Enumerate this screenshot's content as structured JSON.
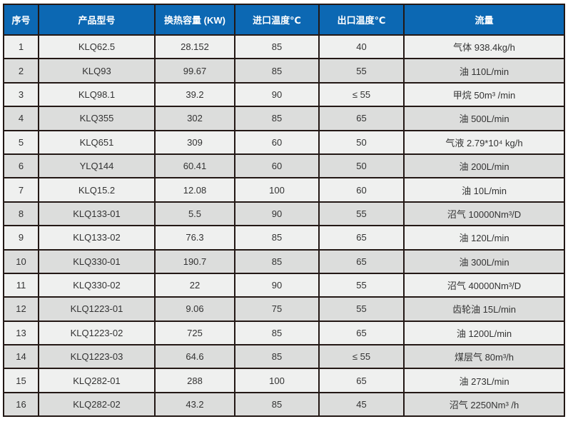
{
  "headers": [
    "序号",
    "产品型号",
    "换热容量 (KW)",
    "进口温度℃",
    "出口温度℃",
    "流量"
  ],
  "rows": [
    [
      "1",
      "KLQ62.5",
      "28.152",
      "85",
      "40",
      "气体 938.4kg/h"
    ],
    [
      "2",
      "KLQ93",
      "99.67",
      "85",
      "55",
      "油 110L/min"
    ],
    [
      "3",
      "KLQ98.1",
      "39.2",
      "90",
      "≤ 55",
      "甲烷 50m³ /min"
    ],
    [
      "4",
      "KLQ355",
      "302",
      "85",
      "65",
      "油 500L/min"
    ],
    [
      "5",
      "KLQ651",
      "309",
      "60",
      "50",
      "气液 2.79*10⁴ kg/h"
    ],
    [
      "6",
      "YLQ144",
      "60.41",
      "60",
      "50",
      "油 200L/min"
    ],
    [
      "7",
      "KLQ15.2",
      "12.08",
      "100",
      "60",
      "油 10L/min"
    ],
    [
      "8",
      "KLQ133-01",
      "5.5",
      "90",
      "55",
      "沼气 10000Nm³/D"
    ],
    [
      "9",
      "KLQ133-02",
      "76.3",
      "85",
      "65",
      "油 120L/min"
    ],
    [
      "10",
      "KLQ330-01",
      "190.7",
      "85",
      "65",
      "油 300L/min"
    ],
    [
      "11",
      "KLQ330-02",
      "22",
      "90",
      "55",
      "沼气 40000Nm³/D"
    ],
    [
      "12",
      "KLQ1223-01",
      "9.06",
      "75",
      "55",
      "齿轮油 15L/min"
    ],
    [
      "13",
      "KLQ1223-02",
      "725",
      "85",
      "65",
      "油 1200L/min"
    ],
    [
      "14",
      "KLQ1223-03",
      "64.6",
      "85",
      "≤ 55",
      "煤层气 80m³/h"
    ],
    [
      "15",
      "KLQ282-01",
      "288",
      "100",
      "65",
      "油 273L/min"
    ],
    [
      "16",
      "KLQ282-02",
      "43.2",
      "85",
      "45",
      "沼气 2250Nm³ /h"
    ]
  ],
  "colors": {
    "header": "#0c68b3",
    "row_odd": "#eff0ef",
    "row_even": "#dcdddc",
    "border": "#231815"
  }
}
